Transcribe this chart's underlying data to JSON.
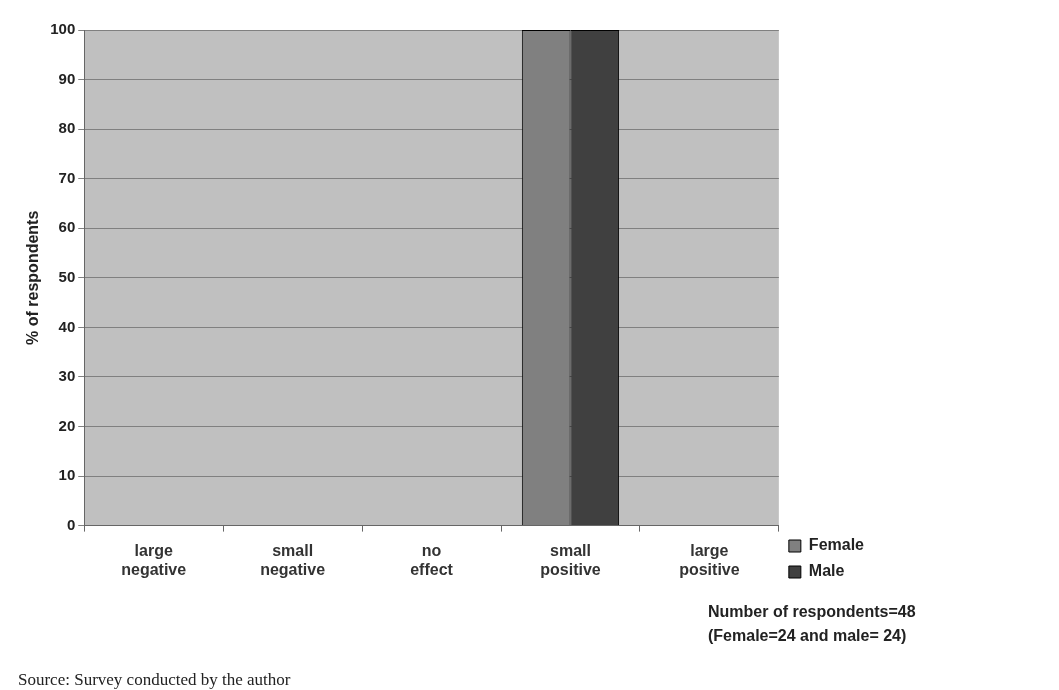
{
  "chart_data": {
    "type": "bar",
    "ylabel": "% of respondents",
    "categories": [
      "large negative",
      "small negative",
      "no effect",
      "small positive",
      "large positive"
    ],
    "series": [
      {
        "name": "Female",
        "color": "#808080",
        "values": [
          0,
          0,
          0,
          100,
          0
        ]
      },
      {
        "name": "Male",
        "color": "#404040",
        "values": [
          0,
          0,
          0,
          100,
          0
        ]
      }
    ],
    "ylim": [
      0,
      100
    ],
    "yticks": [
      0,
      10,
      20,
      30,
      40,
      50,
      60,
      70,
      80,
      90,
      100
    ],
    "grid": "y",
    "legend": "right",
    "annotations": [
      "Number of respondents=48",
      "(Female=24 and male= 24)",
      "Source: Survey conducted by the author"
    ]
  }
}
